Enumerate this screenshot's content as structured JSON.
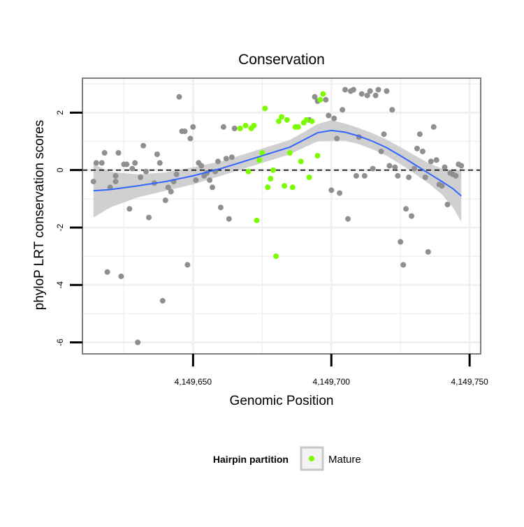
{
  "chart_data": {
    "type": "scatter",
    "title": "Conservation",
    "xlabel": "Genomic Position",
    "ylabel": "phyloP LRT conservation scores",
    "xlim": [
      4149610,
      4149754
    ],
    "ylim": [
      -6.4,
      3.2
    ],
    "x_ticks": [
      4149650,
      4149700,
      4149750
    ],
    "x_tick_labels": [
      "4,149,650",
      "4,149,700",
      "4,149,750"
    ],
    "y_ticks": [
      2,
      0,
      -2,
      -4,
      -6
    ],
    "y_tick_labels": [
      "2",
      "0",
      "-2",
      "-4",
      "-6"
    ],
    "reference_line": {
      "y": 0,
      "style": "dashed"
    },
    "grid": true,
    "legend": {
      "title": "Hairpin partition",
      "position": "bottom",
      "entries": [
        {
          "label": "Mature",
          "color": "#7cfc00"
        }
      ]
    },
    "colors": {
      "other_points": "#8f8f8f",
      "mature_points": "#7cfc00",
      "smooth_line": "#3366ff",
      "confidence_band": "#c8c8c8",
      "panel_border": "#7f7f7f"
    },
    "series": [
      {
        "name": "",
        "color": "#8f8f8f",
        "points": [
          [
            4149614,
            -0.4
          ],
          [
            4149615,
            0.25
          ],
          [
            4149617,
            0.25
          ],
          [
            4149618,
            0.6
          ],
          [
            4149619,
            -3.55
          ],
          [
            4149620,
            -0.6
          ],
          [
            4149622,
            -0.4
          ],
          [
            4149622,
            -0.2
          ],
          [
            4149623,
            0.6
          ],
          [
            4149624,
            -3.7
          ],
          [
            4149625,
            0.2
          ],
          [
            4149626,
            0.2
          ],
          [
            4149627,
            -1.35
          ],
          [
            4149628,
            0.05
          ],
          [
            4149629,
            0.25
          ],
          [
            4149630,
            -6.0
          ],
          [
            4149631,
            -0.25
          ],
          [
            4149632,
            0.85
          ],
          [
            4149633,
            -0.05
          ],
          [
            4149634,
            -1.65
          ],
          [
            4149636,
            -0.45
          ],
          [
            4149637,
            0.55
          ],
          [
            4149638,
            0.25
          ],
          [
            4149639,
            -4.55
          ],
          [
            4149640,
            -1.05
          ],
          [
            4149641,
            -0.6
          ],
          [
            4149642,
            -0.75
          ],
          [
            4149643,
            -0.4
          ],
          [
            4149644,
            -0.15
          ],
          [
            4149645,
            2.55
          ],
          [
            4149646,
            1.35
          ],
          [
            4149647,
            1.35
          ],
          [
            4149648,
            -3.3
          ],
          [
            4149649,
            1.1
          ],
          [
            4149650,
            1.5
          ],
          [
            4149651,
            -0.35
          ],
          [
            4149652,
            0.25
          ],
          [
            4149653,
            0.15
          ],
          [
            4149654,
            -0.2
          ],
          [
            4149655,
            -0.1
          ],
          [
            4149656,
            -0.35
          ],
          [
            4149657,
            -0.6
          ],
          [
            4149658,
            -0.05
          ],
          [
            4149659,
            0.3
          ],
          [
            4149660,
            -1.3
          ],
          [
            4149661,
            1.5
          ],
          [
            4149662,
            0.4
          ],
          [
            4149663,
            -1.7
          ],
          [
            4149664,
            0.45
          ],
          [
            4149665,
            1.45
          ],
          [
            4149692,
            1.75
          ],
          [
            4149694,
            2.55
          ],
          [
            4149695,
            2.4
          ],
          [
            4149698,
            2.45
          ],
          [
            4149699,
            1.9
          ],
          [
            4149700,
            -0.7
          ],
          [
            4149701,
            1.8
          ],
          [
            4149702,
            1.1
          ],
          [
            4149703,
            -0.8
          ],
          [
            4149704,
            2.1
          ],
          [
            4149705,
            2.8
          ],
          [
            4149706,
            -1.7
          ],
          [
            4149707,
            2.75
          ],
          [
            4149708,
            2.8
          ],
          [
            4149709,
            -0.2
          ],
          [
            4149710,
            1.15
          ],
          [
            4149711,
            2.65
          ],
          [
            4149712,
            -0.2
          ],
          [
            4149713,
            2.6
          ],
          [
            4149714,
            2.75
          ],
          [
            4149715,
            0.05
          ],
          [
            4149716,
            2.6
          ],
          [
            4149717,
            2.8
          ],
          [
            4149718,
            0.65
          ],
          [
            4149719,
            1.25
          ],
          [
            4149720,
            2.75
          ],
          [
            4149721,
            0.15
          ],
          [
            4149722,
            2.1
          ],
          [
            4149723,
            0.1
          ],
          [
            4149724,
            -0.2
          ],
          [
            4149725,
            -2.5
          ],
          [
            4149726,
            -3.3
          ],
          [
            4149727,
            -1.35
          ],
          [
            4149728,
            -0.25
          ],
          [
            4149729,
            -1.6
          ],
          [
            4149730,
            0.05
          ],
          [
            4149731,
            0.75
          ],
          [
            4149732,
            1.25
          ],
          [
            4149733,
            0.65
          ],
          [
            4149734,
            -0.25
          ],
          [
            4149735,
            -2.85
          ],
          [
            4149736,
            0.3
          ],
          [
            4149737,
            1.5
          ],
          [
            4149738,
            0.35
          ],
          [
            4149739,
            -0.5
          ],
          [
            4149740,
            -0.55
          ],
          [
            4149741,
            0.1
          ],
          [
            4149742,
            -1.2
          ],
          [
            4149743,
            -0.1
          ],
          [
            4149744,
            -0.15
          ],
          [
            4149745,
            -0.2
          ],
          [
            4149746,
            0.2
          ],
          [
            4149747,
            0.15
          ]
        ]
      },
      {
        "name": "Mature",
        "color": "#7cfc00",
        "points": [
          [
            4149667,
            1.45
          ],
          [
            4149669,
            1.55
          ],
          [
            4149670,
            -0.05
          ],
          [
            4149671,
            1.45
          ],
          [
            4149672,
            1.55
          ],
          [
            4149673,
            -1.75
          ],
          [
            4149674,
            0.35
          ],
          [
            4149675,
            0.6
          ],
          [
            4149676,
            2.15
          ],
          [
            4149677,
            -0.6
          ],
          [
            4149678,
            -0.3
          ],
          [
            4149679,
            0.0
          ],
          [
            4149680,
            -3.0
          ],
          [
            4149681,
            1.7
          ],
          [
            4149682,
            1.85
          ],
          [
            4149683,
            -0.55
          ],
          [
            4149684,
            1.75
          ],
          [
            4149685,
            0.6
          ],
          [
            4149686,
            -0.6
          ],
          [
            4149687,
            1.5
          ],
          [
            4149688,
            1.5
          ],
          [
            4149689,
            0.3
          ],
          [
            4149690,
            1.65
          ],
          [
            4149691,
            1.75
          ],
          [
            4149692,
            -0.25
          ],
          [
            4149693,
            1.7
          ],
          [
            4149695,
            0.5
          ],
          [
            4149696,
            2.45
          ],
          [
            4149697,
            2.65
          ]
        ]
      }
    ],
    "smooth": {
      "method": "loess",
      "x": [
        4149614,
        4149620,
        4149630,
        4149640,
        4149650,
        4149660,
        4149670,
        4149680,
        4149685,
        4149690,
        4149695,
        4149700,
        4149705,
        4149710,
        4149715,
        4149720,
        4149725,
        4149730,
        4149735,
        4149740,
        4149744,
        4149747
      ],
      "y": [
        -0.72,
        -0.68,
        -0.55,
        -0.4,
        -0.2,
        0.05,
        0.35,
        0.65,
        0.8,
        1.05,
        1.3,
        1.38,
        1.32,
        1.18,
        1.0,
        0.78,
        0.5,
        0.2,
        -0.1,
        -0.4,
        -0.65,
        -0.9
      ],
      "lower": [
        -1.65,
        -1.3,
        -0.95,
        -0.72,
        -0.5,
        -0.2,
        0.1,
        0.4,
        0.55,
        0.78,
        1.0,
        1.02,
        1.02,
        0.9,
        0.72,
        0.5,
        0.2,
        -0.12,
        -0.45,
        -0.85,
        -1.3,
        -1.8
      ],
      "upper": [
        0.21,
        -0.06,
        -0.15,
        -0.08,
        0.1,
        0.3,
        0.6,
        0.9,
        1.05,
        1.32,
        1.6,
        1.74,
        1.62,
        1.46,
        1.28,
        1.06,
        0.8,
        0.52,
        0.25,
        0.05,
        0.0,
        0.0
      ]
    }
  }
}
